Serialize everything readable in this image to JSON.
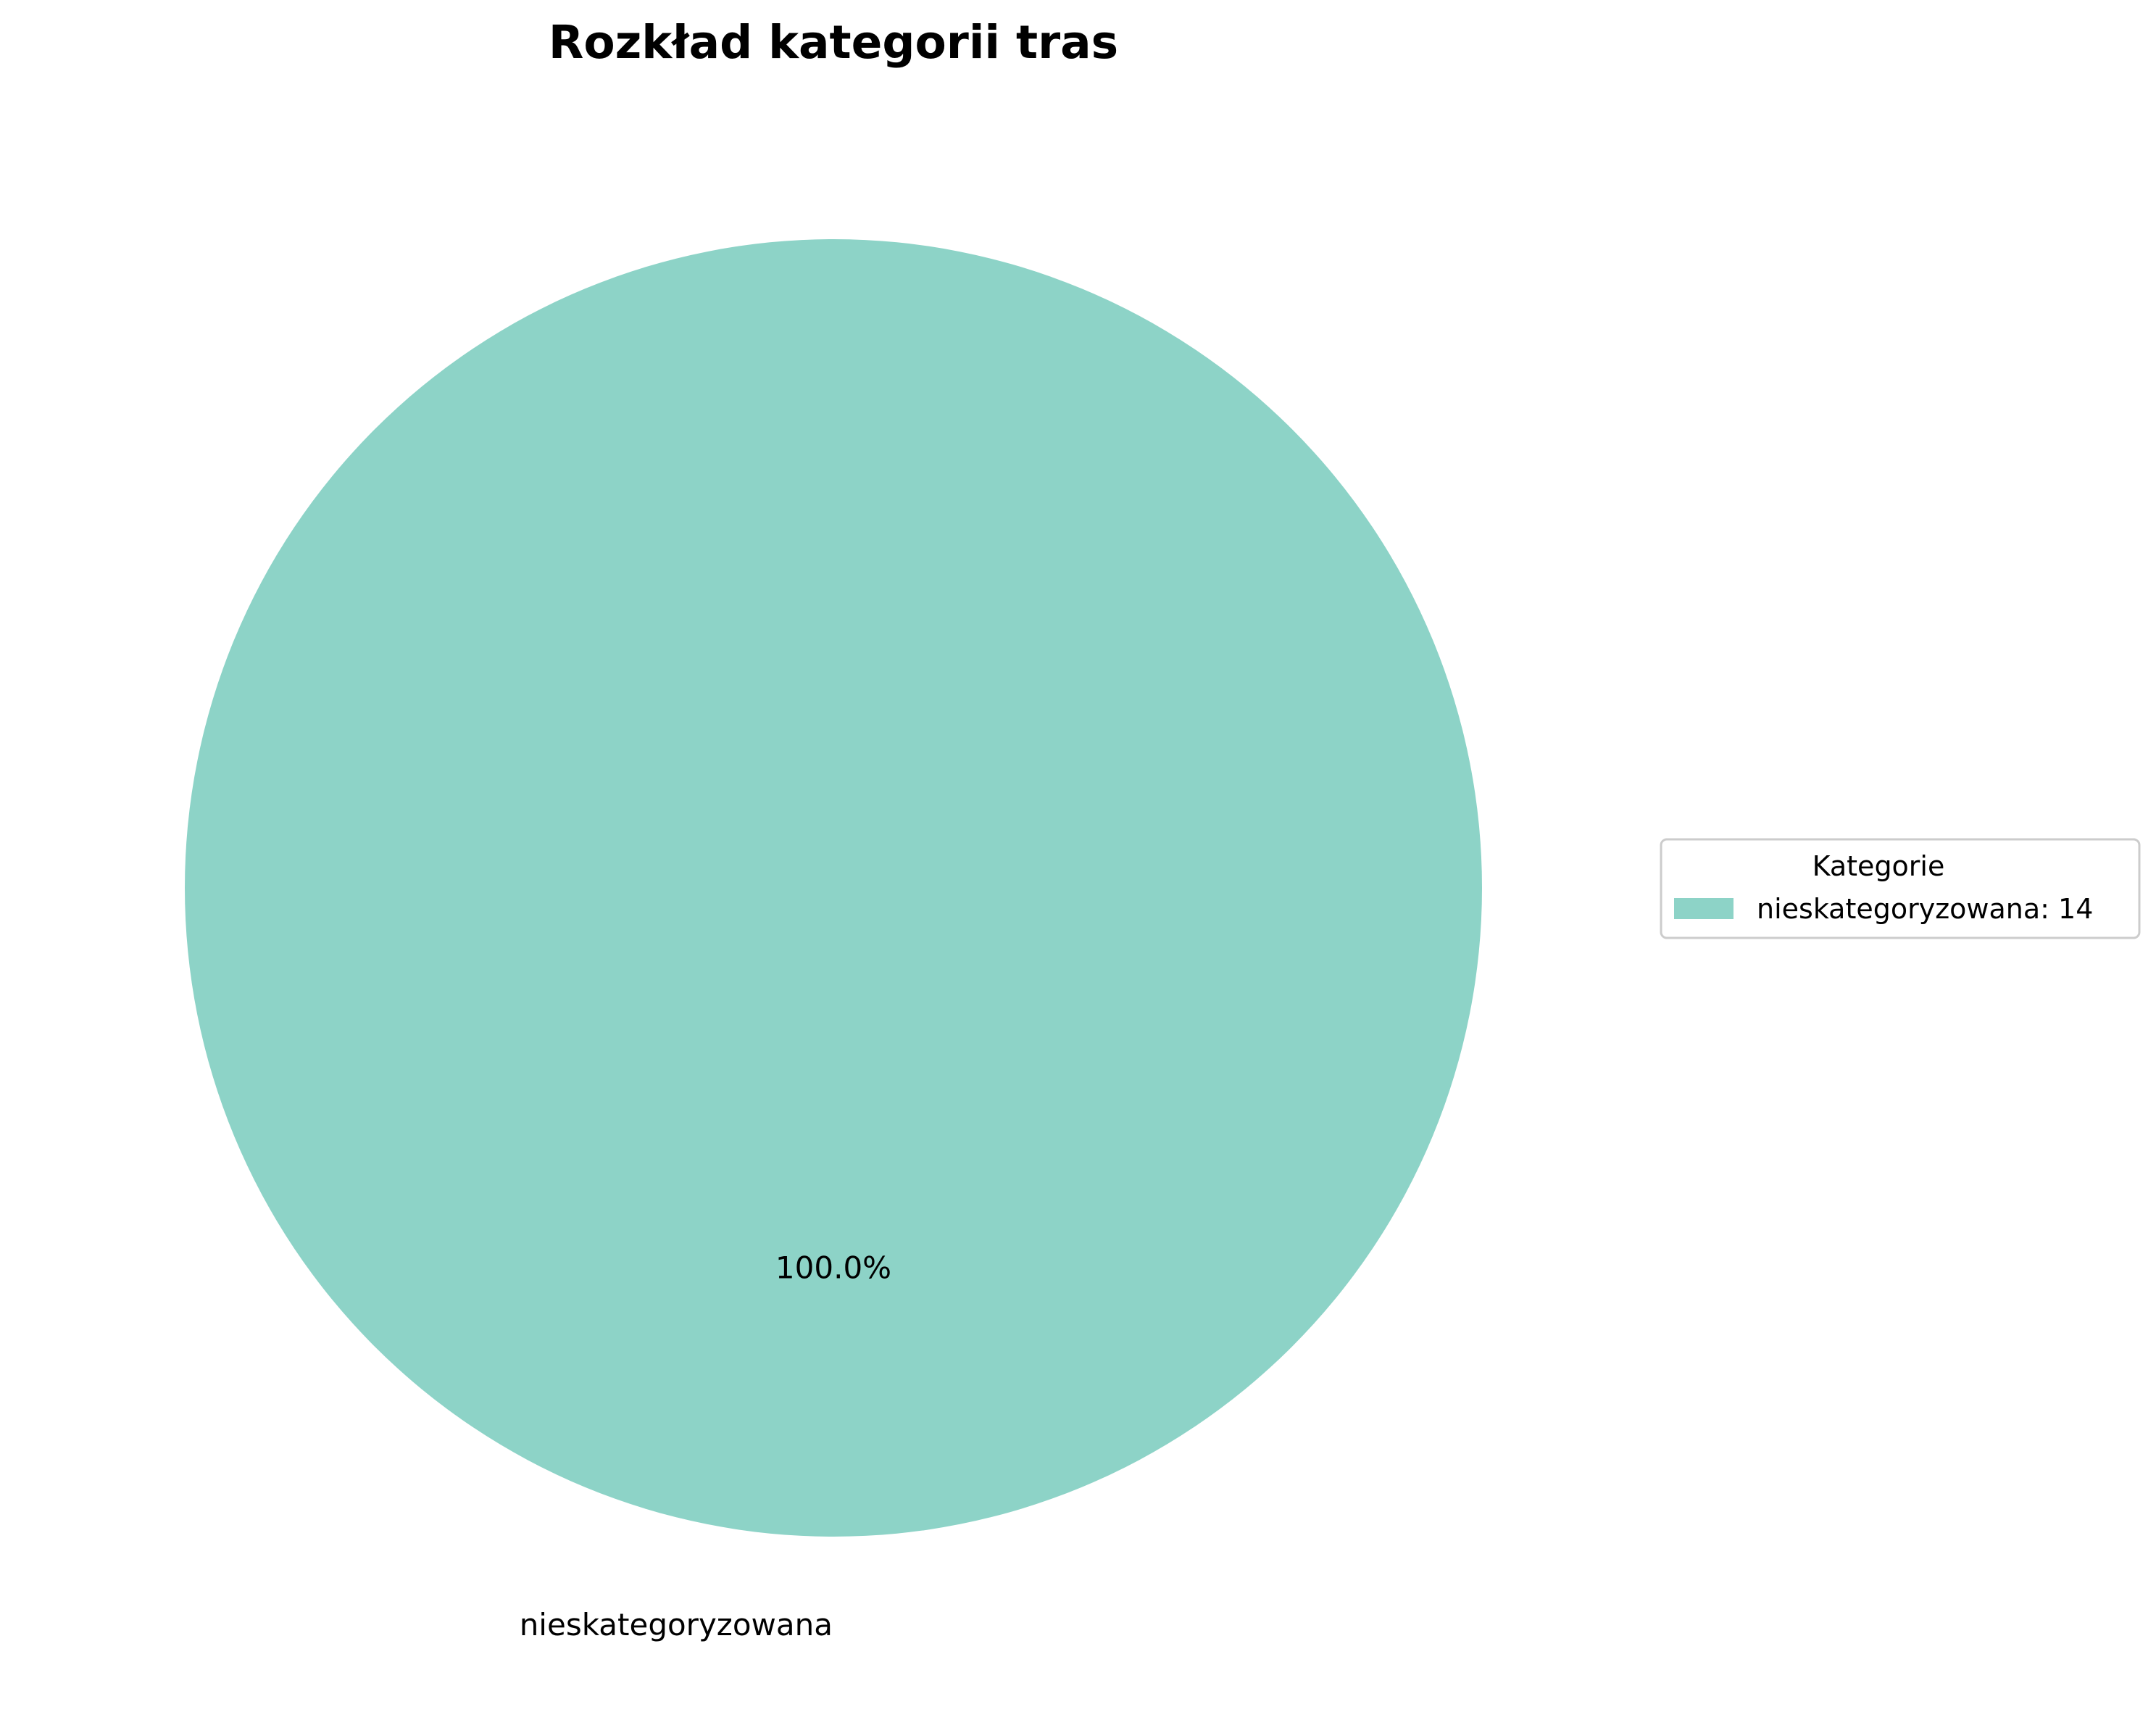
{
  "chart_data": {
    "type": "pie",
    "title": "Rozkład kategorii tras",
    "categories": [
      "nieskategoryzowana"
    ],
    "values": [
      14
    ],
    "percent_labels": [
      "100.0%"
    ],
    "colors": [
      "#8dd3c7"
    ],
    "legend": {
      "title": "Kategorie",
      "placement": "right",
      "entries": [
        "nieskategoryzowana: 14"
      ]
    }
  }
}
